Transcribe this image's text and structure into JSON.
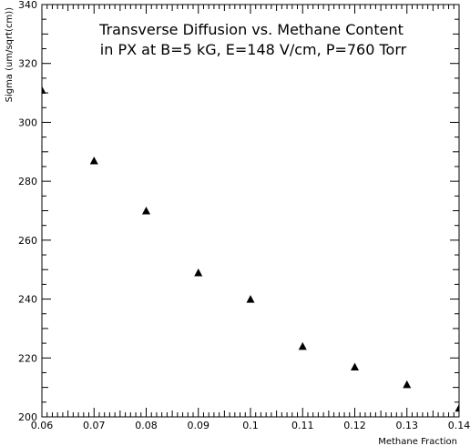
{
  "chart_data": {
    "type": "scatter",
    "title_lines": [
      "Transverse Diffusion vs. Methane Content",
      "in PX at B=5 kG, E=148 V/cm, P=760 Torr"
    ],
    "xlabel": "Methane Fraction",
    "ylabel": "Sigma (um/sqrt(cm))",
    "xlim": [
      0.06,
      0.14
    ],
    "ylim": [
      200,
      340
    ],
    "x_ticks": [
      0.06,
      0.07,
      0.08,
      0.09,
      0.1,
      0.11,
      0.12,
      0.13,
      0.14
    ],
    "x_tick_labels": [
      "0.06",
      "0.07",
      "0.08",
      "0.09",
      "0.1",
      "0.11",
      "0.12",
      "0.13",
      "0.14"
    ],
    "y_ticks": [
      200,
      220,
      240,
      260,
      280,
      300,
      320,
      340
    ],
    "y_tick_labels": [
      "200",
      "220",
      "240",
      "260",
      "280",
      "300",
      "320",
      "340"
    ],
    "marker": "triangle",
    "grid": false,
    "series": [
      {
        "x": [
          0.06,
          0.07,
          0.08,
          0.09,
          0.1,
          0.11,
          0.12,
          0.13,
          0.14
        ],
        "y": [
          311,
          287,
          270,
          249,
          240,
          224,
          217,
          211,
          203
        ]
      }
    ]
  }
}
